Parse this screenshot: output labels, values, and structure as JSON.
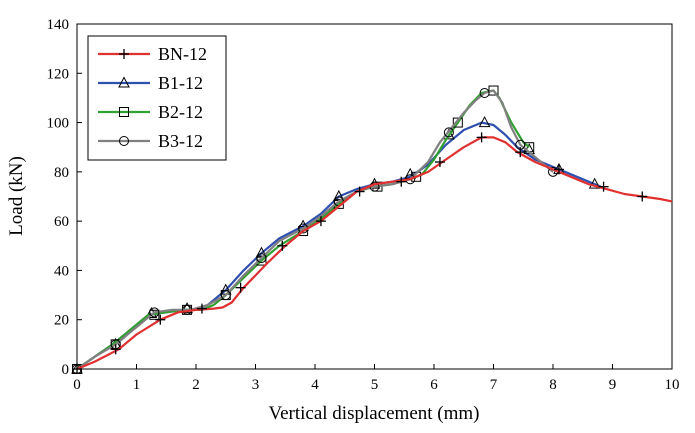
{
  "chart_data": {
    "type": "line",
    "xlabel": "Vertical displacement (mm)",
    "ylabel": "Load (kN)",
    "xlim": [
      0,
      10
    ],
    "ylim": [
      0,
      140
    ],
    "xticks": [
      0,
      1,
      2,
      3,
      4,
      5,
      6,
      7,
      8,
      9,
      10
    ],
    "yticks": [
      0,
      20,
      40,
      60,
      80,
      100,
      120,
      140
    ],
    "grid": false,
    "legend_position": "top-left",
    "series": [
      {
        "name": "BN-12",
        "color": "#e03030",
        "marker": "plus",
        "x": [
          0,
          0.3,
          0.7,
          1.0,
          1.4,
          1.7,
          2.0,
          2.3,
          2.45,
          2.6,
          2.8,
          3.2,
          3.5,
          3.8,
          4.1,
          4.4,
          4.7,
          5.0,
          5.3,
          5.6,
          5.9,
          6.2,
          6.5,
          6.8,
          7.0,
          7.2,
          7.4,
          7.7,
          8.0,
          8.3,
          8.6,
          8.9,
          9.2,
          9.5,
          9.8,
          10.0
        ],
        "y": [
          0,
          3,
          8,
          14,
          20,
          23,
          24,
          24.5,
          25,
          27,
          33,
          43,
          50,
          56,
          60,
          66,
          72,
          75,
          76,
          77,
          80,
          85,
          90,
          94,
          94,
          92,
          88,
          84,
          81,
          78,
          75,
          73,
          71,
          70,
          69,
          68
        ],
        "marker_x": [
          0,
          0.65,
          1.4,
          2.1,
          2.75,
          3.45,
          4.1,
          4.75,
          5.45,
          6.1,
          6.8,
          7.45,
          8.1,
          8.85,
          9.5
        ],
        "marker_y": [
          0,
          8,
          20,
          24.5,
          33,
          50,
          60,
          72,
          76,
          84,
          94,
          88,
          81,
          74,
          70
        ]
      },
      {
        "name": "B1-12",
        "color": "#3050b0",
        "marker": "triangle",
        "x": [
          0,
          0.3,
          0.6,
          0.9,
          1.2,
          1.5,
          1.8,
          2.0,
          2.2,
          2.5,
          2.8,
          3.1,
          3.4,
          3.8,
          4.1,
          4.4,
          4.7,
          5.0,
          5.3,
          5.6,
          5.9,
          6.2,
          6.5,
          6.8,
          7.0,
          7.2,
          7.4,
          7.7,
          8.0,
          8.3,
          8.6,
          8.8
        ],
        "y": [
          0,
          5,
          10,
          16,
          22,
          23,
          24,
          24,
          26,
          32,
          40,
          47,
          53,
          58,
          63,
          70,
          73,
          75,
          76,
          78,
          83,
          91,
          97,
          100,
          99,
          95,
          90,
          85,
          82,
          79,
          76,
          74
        ],
        "marker_x": [
          0,
          0.65,
          1.25,
          1.85,
          2.5,
          3.1,
          3.8,
          4.4,
          5.0,
          5.6,
          6.25,
          6.85,
          7.6,
          8.1,
          8.7
        ],
        "marker_y": [
          0,
          10,
          22.5,
          24.5,
          32,
          47,
          58,
          70,
          75,
          79,
          95,
          100,
          89,
          81,
          75
        ]
      },
      {
        "name": "B2-12",
        "color": "#30a030",
        "marker": "square",
        "x": [
          0,
          0.3,
          0.6,
          0.9,
          1.2,
          1.5,
          1.8,
          2.1,
          2.3,
          2.5,
          2.8,
          3.1,
          3.4,
          3.8,
          4.1,
          4.4,
          4.7,
          5.0,
          5.3,
          5.6,
          5.8,
          6.0,
          6.2,
          6.4,
          6.6,
          6.8,
          7.0,
          7.1,
          7.3,
          7.5,
          7.6
        ],
        "y": [
          0,
          5,
          10,
          16,
          22,
          23,
          24,
          24,
          26,
          30,
          37,
          44,
          50,
          56,
          61,
          67,
          72,
          74,
          75,
          77,
          79,
          85,
          93,
          100,
          107,
          112,
          113,
          110,
          100,
          92,
          90
        ],
        "marker_x": [
          0,
          0.65,
          1.3,
          1.85,
          2.5,
          3.1,
          3.8,
          4.4,
          5.05,
          5.7,
          6.4,
          7.0,
          7.6
        ],
        "marker_y": [
          0,
          10,
          22,
          24,
          30,
          44,
          56,
          67,
          74,
          78,
          100,
          113,
          90
        ]
      },
      {
        "name": "B3-12",
        "color": "#808080",
        "marker": "circle",
        "x": [
          0,
          0.3,
          0.65,
          1.0,
          1.3,
          1.6,
          1.9,
          2.2,
          2.5,
          2.8,
          3.1,
          3.4,
          3.8,
          4.1,
          4.4,
          4.7,
          5.0,
          5.3,
          5.6,
          5.9,
          6.1,
          6.3,
          6.5,
          6.7,
          6.85,
          7.0,
          7.15,
          7.3,
          7.45,
          7.7,
          8.0
        ],
        "y": [
          0,
          5,
          10,
          17,
          23,
          24,
          24,
          26,
          30,
          38,
          45,
          52,
          57,
          62,
          68,
          72,
          74,
          75,
          77,
          84,
          92,
          98,
          104,
          109,
          112,
          113,
          108,
          98,
          91,
          86,
          80
        ],
        "marker_x": [
          0,
          0.65,
          1.3,
          1.85,
          2.5,
          3.1,
          3.8,
          4.4,
          5.0,
          5.6,
          6.25,
          6.85,
          7.45,
          8.0
        ],
        "marker_y": [
          0,
          10,
          23,
          24,
          30,
          45,
          57,
          68,
          74,
          77,
          96,
          112,
          91,
          80
        ]
      }
    ]
  }
}
